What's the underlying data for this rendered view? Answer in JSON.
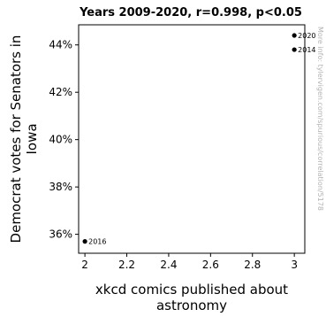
{
  "chart_data": {
    "type": "scatter",
    "title": "Years 2009-2020, r=0.998, p<0.05",
    "xlabel": "xkcd comics published about astronomy",
    "ylabel": "Democrat votes for Senators in Iowa",
    "xlim": [
      1.97,
      3.05
    ],
    "ylim": [
      35.2,
      44.85
    ],
    "xticks": [
      2,
      2.2,
      2.4,
      2.6,
      2.8,
      3
    ],
    "xtick_labels": [
      "2",
      "2.2",
      "2.4",
      "2.6",
      "2.8",
      "3"
    ],
    "yticks": [
      36,
      38,
      40,
      42,
      44
    ],
    "ytick_labels": [
      "36%",
      "38%",
      "40%",
      "42%",
      "44%"
    ],
    "points": [
      {
        "x": 3,
        "y": 44.4,
        "label": "2020"
      },
      {
        "x": 3,
        "y": 43.8,
        "label": "2014"
      },
      {
        "x": 2,
        "y": 35.7,
        "label": "2016"
      }
    ],
    "marker_color": "#000000",
    "grid": false,
    "watermark": "More info: tylervigen.com/spurious/correlation/5178"
  }
}
